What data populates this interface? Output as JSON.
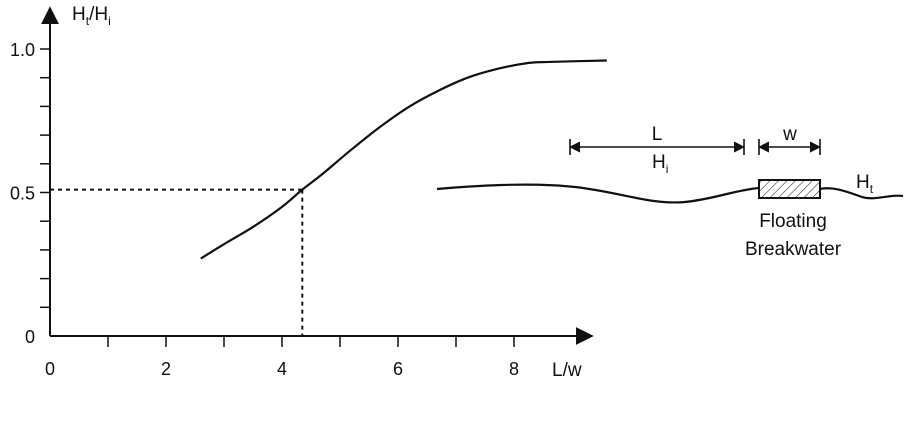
{
  "chart_data": {
    "type": "line",
    "x_axis": {
      "label": "L/w",
      "min": 0,
      "max": 8.8,
      "tick_labels": [
        "0",
        "2",
        "4",
        "6",
        "8"
      ],
      "tick_values": [
        0,
        2,
        4,
        6,
        8
      ],
      "minor_tick_values": [
        1,
        3,
        5,
        7
      ]
    },
    "y_axis": {
      "label_main": "H",
      "label_sub_t": "t",
      "label_slash": "/H",
      "label_sub_i": "i",
      "min": 0,
      "max": 1.05,
      "tick_labels": [
        "0",
        "0.5",
        "1.0"
      ],
      "tick_values": [
        0,
        0.5,
        1.0
      ],
      "minor_tick_values": [
        0.1,
        0.2,
        0.3,
        0.4,
        0.6,
        0.7,
        0.8,
        0.9
      ]
    },
    "series": [
      {
        "x": [
          2.6,
          3.0,
          3.5,
          4.0,
          4.35,
          4.7,
          5.2,
          5.7,
          6.2,
          6.7,
          7.2,
          7.7,
          8.2,
          8.6,
          9.6
        ],
        "y": [
          0.27,
          0.32,
          0.38,
          0.45,
          0.51,
          0.565,
          0.65,
          0.73,
          0.8,
          0.855,
          0.9,
          0.93,
          0.95,
          0.955,
          0.96
        ]
      }
    ],
    "reference_point": {
      "x": 4.35,
      "y": 0.51
    },
    "grid": false
  },
  "diagram": {
    "dimension_L": "L",
    "dimension_w": "w",
    "incident_H": "H",
    "incident_sub": "i",
    "transmitted_H": "H",
    "transmitted_sub": "t",
    "caption_line1": "Floating",
    "caption_line2": "Breakwater"
  }
}
